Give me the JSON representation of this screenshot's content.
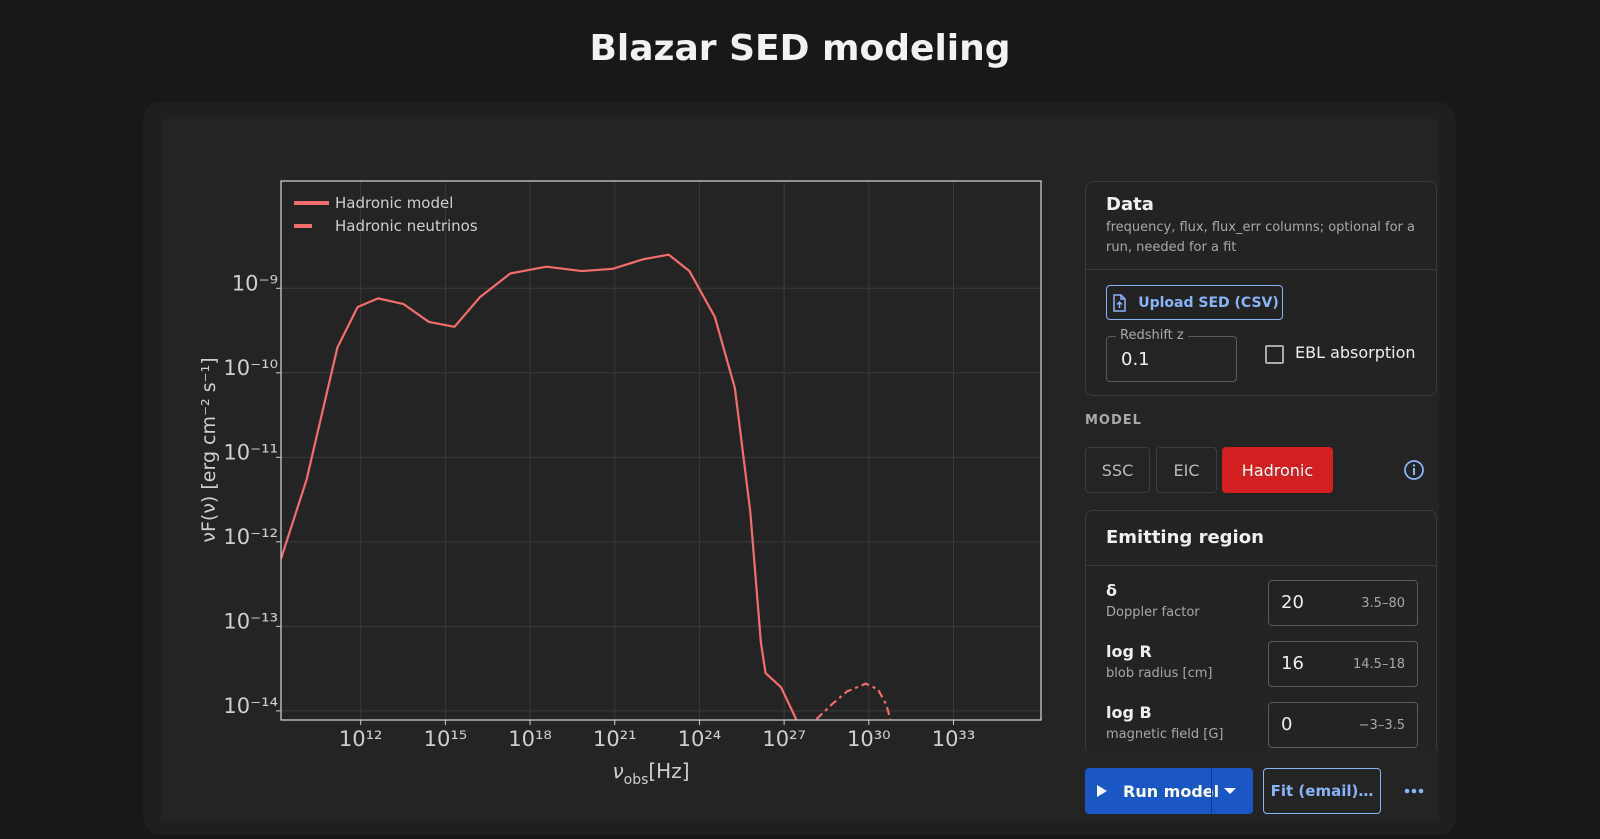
{
  "header": {
    "title": "Blazar SED modeling"
  },
  "chart_data": {
    "type": "line",
    "x_label": {
      "symbol": "ν",
      "subscript": "obs",
      "unit": "[Hz]"
    },
    "y_label": "νF(ν) [erg cm⁻² s⁻¹]",
    "xscale": "log",
    "yscale": "log",
    "xlim": [
      1500000000.0,
      1.26e+36
    ],
    "ylim": [
      7.8e-15,
      1.86e-08
    ],
    "xticks": [
      {
        "value": 1000000000000.0,
        "label": "10¹²"
      },
      {
        "value": 1000000000000000.0,
        "label": "10¹⁵"
      },
      {
        "value": 1e+18,
        "label": "10¹⁸"
      },
      {
        "value": 1e+21,
        "label": "10²¹"
      },
      {
        "value": 1e+24,
        "label": "10²⁴"
      },
      {
        "value": 1e+27,
        "label": "10²⁷"
      },
      {
        "value": 1e+30,
        "label": "10³⁰"
      },
      {
        "value": 1e+33,
        "label": "10³³"
      }
    ],
    "yticks": [
      {
        "value": 1e-14,
        "label": "10⁻¹⁴"
      },
      {
        "value": 1e-13,
        "label": "10⁻¹³"
      },
      {
        "value": 1e-12,
        "label": "10⁻¹²"
      },
      {
        "value": 1e-11,
        "label": "10⁻¹¹"
      },
      {
        "value": 1e-10,
        "label": "10⁻¹⁰"
      },
      {
        "value": 1e-09,
        "label": "10⁻⁹"
      }
    ],
    "grid": true,
    "legend": "upper left",
    "series": [
      {
        "name": "Hadronic model",
        "color": "#f46d6d",
        "style": "solid",
        "x": [
          1500000000.0,
          12000000000.0,
          150000000000.0,
          780000000000.0,
          4100000000000.0,
          33000000000000.0,
          260000000000000.0,
          2100000000000000.0,
          1.7e+16,
          2e+17,
          3.8e+18,
          6.9e+19,
          8.5e+20,
          1e+22,
          8.1e+22,
          4.4e+23,
          3.5e+24,
          1.8e+25,
          6.3e+25,
          1.5e+26,
          2.2e+26,
          7.8e+26,
          2.7e+27
        ],
        "values": [
          6.3e-13,
          5.4e-12,
          2e-10,
          6e-10,
          7.6e-10,
          6.5e-10,
          4e-10,
          3.5e-10,
          7.9e-10,
          1.5e-09,
          1.8e-09,
          1.6e-09,
          1.7e-09,
          2.2e-09,
          2.5e-09,
          1.6e-09,
          4.6e-10,
          6.6e-11,
          2.3e-12,
          6.5e-14,
          2.8e-14,
          1.9e-14,
          7.9e-15
        ]
      },
      {
        "name": "Hadronic neutrinos",
        "color": "#f46d6d",
        "style": "dashed",
        "x": [
          1.4e+28,
          5e+28,
          1.7e+29,
          7.8e+29,
          2.1e+30,
          4.1e+30,
          5.8e+30
        ],
        "values": [
          8e-15,
          1.2e-14,
          1.7e-14,
          2.1e-14,
          1.8e-14,
          1.2e-14,
          8e-15
        ]
      }
    ]
  },
  "data_panel": {
    "title": "Data",
    "description": "frequency, flux, flux_err columns; optional for a run, needed for a fit",
    "upload": "Upload SED (CSV)",
    "redshift_label": "Redshift z",
    "redshift": 0.1,
    "ebl": "EBL absorption"
  },
  "model": {
    "label": "MODEL",
    "options": [
      "SSC",
      "EIC",
      "Hadronic"
    ],
    "active": 2
  },
  "emitting_region": {
    "title": "Emitting region",
    "params": [
      {
        "symbol": "δ",
        "description": "Doppler factor",
        "value": 20,
        "range": "3.5–80"
      },
      {
        "symbol": "log R",
        "description": "blob radius [cm]",
        "value": 16,
        "range": "14.5–18"
      },
      {
        "symbol": "log B",
        "description": "magnetic field [G]",
        "value": 0,
        "range": "−3–3.5"
      }
    ]
  },
  "actions": {
    "run": "Run model",
    "fit": "Fit (email)…"
  }
}
